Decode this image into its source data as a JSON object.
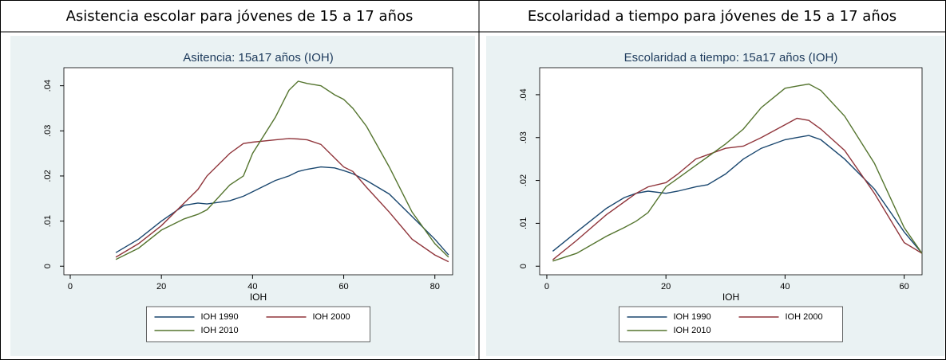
{
  "headers": [
    "Asistencia escolar para jóvenes de 15 a 17 años",
    "Escolaridad a tiempo para jóvenes de 15 a 17 años"
  ],
  "chart_data": [
    {
      "type": "line",
      "title": "Asitencia: 15a17 años (IOH)",
      "xlabel": "IOH",
      "x": [
        10,
        15,
        20,
        25,
        28,
        30,
        35,
        38,
        40,
        45,
        48,
        50,
        52,
        55,
        58,
        60,
        62,
        65,
        70,
        75,
        80,
        83
      ],
      "series": [
        {
          "name": "IOH 1990",
          "color": "#1a476f",
          "values": [
            0.003,
            0.006,
            0.01,
            0.0135,
            0.014,
            0.0138,
            0.0145,
            0.0155,
            0.0165,
            0.019,
            0.02,
            0.021,
            0.0215,
            0.022,
            0.0218,
            0.0212,
            0.0205,
            0.019,
            0.016,
            0.011,
            0.006,
            0.0025
          ]
        },
        {
          "name": "IOH 2000",
          "color": "#90353b",
          "values": [
            0.002,
            0.005,
            0.009,
            0.014,
            0.017,
            0.02,
            0.025,
            0.0272,
            0.0275,
            0.028,
            0.0283,
            0.0282,
            0.028,
            0.027,
            0.024,
            0.022,
            0.021,
            0.0175,
            0.012,
            0.006,
            0.0025,
            0.001
          ]
        },
        {
          "name": "IOH 2010",
          "color": "#55752f",
          "values": [
            0.0015,
            0.004,
            0.008,
            0.0105,
            0.0115,
            0.0125,
            0.018,
            0.02,
            0.025,
            0.033,
            0.039,
            0.041,
            0.0405,
            0.04,
            0.038,
            0.037,
            0.035,
            0.031,
            0.022,
            0.012,
            0.005,
            0.002
          ]
        }
      ],
      "xlim": [
        -1.4,
        83.9
      ],
      "xticks": [
        0,
        20,
        40,
        60,
        80
      ],
      "ylim": [
        -0.0019,
        0.044
      ],
      "yticks": [
        0,
        {
          "value": 0.01,
          "label": ".01"
        },
        {
          "value": 0.02,
          "label": ".02"
        },
        {
          "value": 0.03,
          "label": ".03"
        },
        {
          "value": 0.04,
          "label": ".04"
        }
      ],
      "grid": false
    },
    {
      "type": "line",
      "title": "Escolaridad a tiempo: 15a17 años (IOH)",
      "xlabel": "IOH",
      "x": [
        1,
        5,
        10,
        13,
        15,
        17,
        20,
        22,
        25,
        27,
        30,
        33,
        36,
        40,
        42,
        44,
        46,
        50,
        55,
        60,
        63
      ],
      "series": [
        {
          "name": "IOH 1990",
          "color": "#1a476f",
          "values": [
            0.0035,
            0.008,
            0.0135,
            0.016,
            0.017,
            0.0175,
            0.017,
            0.0175,
            0.0185,
            0.019,
            0.0215,
            0.025,
            0.0275,
            0.0295,
            0.03,
            0.0305,
            0.0295,
            0.025,
            0.018,
            0.008,
            0.003
          ]
        },
        {
          "name": "IOH 2000",
          "color": "#90353b",
          "values": [
            0.0015,
            0.006,
            0.012,
            0.015,
            0.017,
            0.0185,
            0.0195,
            0.0215,
            0.025,
            0.026,
            0.0275,
            0.028,
            0.03,
            0.033,
            0.0345,
            0.034,
            0.032,
            0.027,
            0.017,
            0.0055,
            0.003
          ]
        },
        {
          "name": "IOH 2010",
          "color": "#55752f",
          "values": [
            0.0012,
            0.003,
            0.007,
            0.009,
            0.0105,
            0.0125,
            0.0185,
            0.0205,
            0.0235,
            0.0255,
            0.0285,
            0.032,
            0.037,
            0.0415,
            0.042,
            0.0425,
            0.041,
            0.035,
            0.024,
            0.009,
            0.003
          ]
        }
      ],
      "xlim": [
        -1.2,
        63.0
      ],
      "xticks": [
        0,
        20,
        40,
        60
      ],
      "ylim": [
        -0.002,
        0.0463
      ],
      "yticks": [
        0,
        {
          "value": 0.01,
          "label": ".01"
        },
        {
          "value": 0.02,
          "label": ".02"
        },
        {
          "value": 0.03,
          "label": ".03"
        },
        {
          "value": 0.04,
          "label": ".04"
        }
      ],
      "grid": false
    }
  ]
}
